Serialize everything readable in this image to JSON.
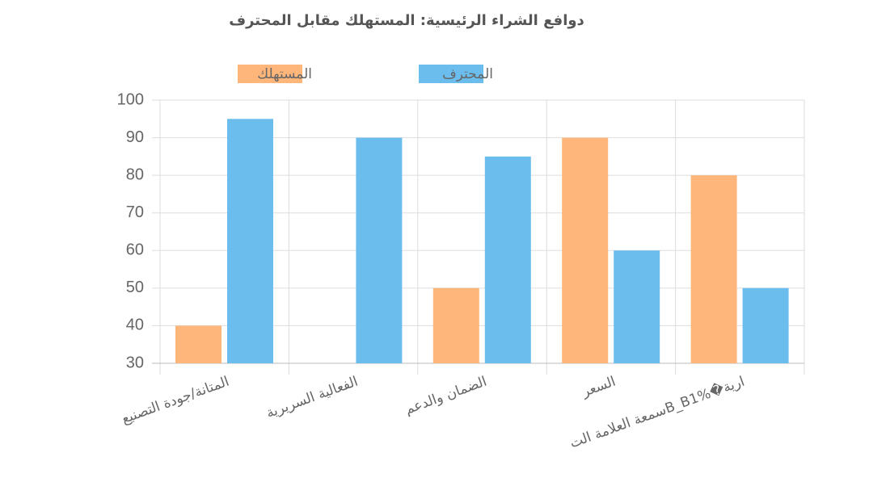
{
  "chart_data": {
    "type": "bar",
    "title": "دوافع الشراء الرئيسية: المستهلك مقابل المحترف",
    "categories": [
      "المتانة/جودة التصنيع",
      "الفعالية السريرية",
      "الضمان والدعم",
      "السعر",
      "سمعة العلامة التB_B1%�ارية"
    ],
    "series": [
      {
        "name": "المستهلك",
        "color": "#feb67a",
        "values": [
          40,
          30,
          50,
          90,
          80
        ]
      },
      {
        "name": "المحترف",
        "color": "#6bbdee",
        "values": [
          95,
          90,
          85,
          60,
          50
        ]
      }
    ],
    "ylim": [
      30,
      100
    ],
    "yticks": [
      30,
      40,
      50,
      60,
      70,
      80,
      90,
      100
    ],
    "grid": true
  }
}
